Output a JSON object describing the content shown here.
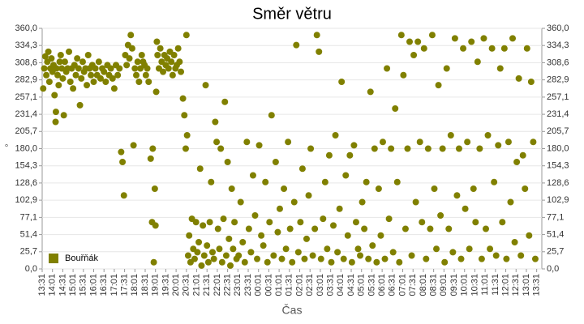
{
  "chart_data": {
    "type": "scatter",
    "title": "Směr větru",
    "x_label": "Čas",
    "y_label": "°",
    "xlim": [
      0,
      1455
    ],
    "ylim": [
      0,
      360
    ],
    "grid": true,
    "legend": "bottom-left",
    "xticks": [
      {
        "value": 0,
        "label": "13:31"
      },
      {
        "value": 30,
        "label": "14:01"
      },
      {
        "value": 60,
        "label": "14:31"
      },
      {
        "value": 90,
        "label": "15:01"
      },
      {
        "value": 120,
        "label": "15:31"
      },
      {
        "value": 150,
        "label": "16:01"
      },
      {
        "value": 180,
        "label": "16:31"
      },
      {
        "value": 210,
        "label": "17:01"
      },
      {
        "value": 240,
        "label": "17:31"
      },
      {
        "value": 270,
        "label": "18:01"
      },
      {
        "value": 300,
        "label": "18:31"
      },
      {
        "value": 330,
        "label": "19:01"
      },
      {
        "value": 360,
        "label": "19:31"
      },
      {
        "value": 390,
        "label": "20:01"
      },
      {
        "value": 420,
        "label": "20:31"
      },
      {
        "value": 450,
        "label": "21:01"
      },
      {
        "value": 480,
        "label": "21:31"
      },
      {
        "value": 510,
        "label": "22:01"
      },
      {
        "value": 540,
        "label": "22:31"
      },
      {
        "value": 570,
        "label": "23:01"
      },
      {
        "value": 600,
        "label": "23:31"
      },
      {
        "value": 630,
        "label": "00:01"
      },
      {
        "value": 660,
        "label": "00:31"
      },
      {
        "value": 690,
        "label": "01:01"
      },
      {
        "value": 720,
        "label": "01:31"
      },
      {
        "value": 750,
        "label": "02:01"
      },
      {
        "value": 780,
        "label": "02:31"
      },
      {
        "value": 810,
        "label": "03:01"
      },
      {
        "value": 840,
        "label": "03:31"
      },
      {
        "value": 870,
        "label": "04:01"
      },
      {
        "value": 900,
        "label": "04:31"
      },
      {
        "value": 930,
        "label": "05:01"
      },
      {
        "value": 960,
        "label": "05:31"
      },
      {
        "value": 990,
        "label": "06:01"
      },
      {
        "value": 1020,
        "label": "06:31"
      },
      {
        "value": 1050,
        "label": "07:01"
      },
      {
        "value": 1080,
        "label": "07:31"
      },
      {
        "value": 1110,
        "label": "08:01"
      },
      {
        "value": 1140,
        "label": "08:31"
      },
      {
        "value": 1170,
        "label": "09:01"
      },
      {
        "value": 1200,
        "label": "09:31"
      },
      {
        "value": 1230,
        "label": "10:01"
      },
      {
        "value": 1260,
        "label": "10:31"
      },
      {
        "value": 1290,
        "label": "11:01"
      },
      {
        "value": 1320,
        "label": "11:31"
      },
      {
        "value": 1350,
        "label": "12:01"
      },
      {
        "value": 1380,
        "label": "12:31"
      },
      {
        "value": 1410,
        "label": "13:01"
      },
      {
        "value": 1440,
        "label": "13:31"
      }
    ],
    "yticks": [
      {
        "value": 0,
        "label": "0,0"
      },
      {
        "value": 25.7,
        "label": "25,7"
      },
      {
        "value": 51.4,
        "label": "51,4"
      },
      {
        "value": 77.1,
        "label": "77,1"
      },
      {
        "value": 102.9,
        "label": "102,9"
      },
      {
        "value": 128.6,
        "label": "128,6"
      },
      {
        "value": 154.3,
        "label": "154,3"
      },
      {
        "value": 180,
        "label": "180,0"
      },
      {
        "value": 205.7,
        "label": "205,7"
      },
      {
        "value": 231.4,
        "label": "231,4"
      },
      {
        "value": 257.1,
        "label": "257,1"
      },
      {
        "value": 282.9,
        "label": "282,9"
      },
      {
        "value": 308.6,
        "label": "308,6"
      },
      {
        "value": 334.3,
        "label": "334,3"
      },
      {
        "value": 360,
        "label": "360,0"
      }
    ],
    "x": [
      3,
      6,
      9,
      12,
      15,
      18,
      21,
      24,
      27,
      30,
      33,
      36,
      39,
      40,
      42,
      45,
      48,
      51,
      54,
      57,
      60,
      63,
      66,
      70,
      74,
      78,
      82,
      86,
      90,
      94,
      98,
      102,
      106,
      110,
      114,
      118,
      122,
      126,
      130,
      134,
      138,
      142,
      146,
      150,
      155,
      160,
      165,
      170,
      175,
      180,
      185,
      190,
      195,
      200,
      205,
      210,
      215,
      220,
      225,
      230,
      234,
      238,
      242,
      246,
      250,
      254,
      258,
      262,
      266,
      270,
      274,
      278,
      282,
      286,
      290,
      294,
      298,
      302,
      306,
      310,
      316,
      320,
      322,
      325,
      328,
      330,
      332,
      334,
      336,
      340,
      344,
      348,
      352,
      356,
      360,
      364,
      368,
      372,
      376,
      380,
      384,
      388,
      392,
      396,
      400,
      404,
      410,
      414,
      418,
      420,
      422,
      425,
      428,
      432,
      436,
      440,
      444,
      448,
      452,
      456,
      460,
      464,
      468,
      472,
      476,
      480,
      484,
      488,
      492,
      496,
      500,
      504,
      508,
      512,
      516,
      520,
      524,
      528,
      532,
      536,
      540,
      544,
      548,
      552,
      556,
      560,
      566,
      572,
      578,
      584,
      590,
      596,
      602,
      608,
      614,
      620,
      626,
      632,
      638,
      644,
      650,
      656,
      662,
      668,
      674,
      680,
      686,
      692,
      698,
      704,
      710,
      716,
      722,
      728,
      734,
      740,
      746,
      752,
      758,
      764,
      770,
      776,
      782,
      788,
      794,
      800,
      806,
      812,
      818,
      824,
      830,
      836,
      842,
      848,
      854,
      860,
      866,
      872,
      878,
      884,
      890,
      896,
      902,
      908,
      914,
      920,
      926,
      932,
      938,
      944,
      950,
      956,
      962,
      968,
      974,
      980,
      986,
      992,
      998,
      1004,
      1010,
      1016,
      1022,
      1028,
      1034,
      1040,
      1046,
      1052,
      1058,
      1064,
      1070,
      1076,
      1082,
      1088,
      1094,
      1100,
      1106,
      1112,
      1118,
      1124,
      1130,
      1136,
      1142,
      1148,
      1154,
      1160,
      1166,
      1172,
      1178,
      1184,
      1190,
      1196,
      1202,
      1208,
      1214,
      1220,
      1226,
      1232,
      1238,
      1244,
      1250,
      1256,
      1262,
      1268,
      1274,
      1280,
      1286,
      1292,
      1298,
      1304,
      1310,
      1316,
      1322,
      1328,
      1334,
      1340,
      1346,
      1352,
      1358,
      1364,
      1370,
      1376,
      1382,
      1388,
      1394,
      1400,
      1406,
      1412,
      1418,
      1424,
      1430,
      1436
    ],
    "series": [
      {
        "name": "Bouřňák",
        "color": "#808000",
        "values": [
          270,
          300,
          318,
          290,
          310,
          325,
          280,
          300,
          315,
          295,
          305,
          260,
          220,
          235,
          300,
          290,
          275,
          310,
          320,
          300,
          285,
          230,
          310,
          295,
          300,
          325,
          280,
          300,
          270,
          305,
          290,
          315,
          300,
          245,
          285,
          310,
          295,
          300,
          275,
          320,
          300,
          290,
          305,
          280,
          300,
          290,
          310,
          285,
          300,
          295,
          280,
          305,
          290,
          300,
          285,
          270,
          305,
          290,
          300,
          175,
          160,
          110,
          320,
          305,
          335,
          315,
          350,
          330,
          185,
          300,
          290,
          310,
          280,
          300,
          320,
          310,
          305,
          290,
          300,
          280,
          165,
          70,
          180,
          10,
          120,
          65,
          265,
          340,
          320,
          300,
          330,
          310,
          295,
          320,
          305,
          315,
          300,
          325,
          310,
          290,
          320,
          300,
          305,
          330,
          310,
          295,
          255,
          230,
          180,
          350,
          200,
          20,
          50,
          10,
          75,
          30,
          15,
          70,
          25,
          40,
          150,
          5,
          65,
          20,
          275,
          35,
          10,
          70,
          130,
          25,
          15,
          220,
          190,
          60,
          30,
          180,
          10,
          75,
          250,
          20,
          160,
          45,
          5,
          120,
          30,
          70,
          15,
          20,
          100,
          40,
          10,
          190,
          60,
          25,
          140,
          80,
          15,
          185,
          50,
          35,
          130,
          10,
          70,
          230,
          20,
          160,
          55,
          90,
          15,
          120,
          30,
          190,
          60,
          10,
          100,
          335,
          25,
          70,
          150,
          15,
          45,
          110,
          180,
          20,
          60,
          350,
          325,
          15,
          75,
          130,
          30,
          170,
          10,
          65,
          200,
          25,
          90,
          280,
          15,
          140,
          50,
          170,
          10,
          185,
          70,
          30,
          20,
          100,
          60,
          130,
          15,
          265,
          35,
          180,
          10,
          120,
          50,
          190,
          15,
          300,
          75,
          180,
          25,
          240,
          130,
          10,
          350,
          290,
          60,
          180,
          340,
          20,
          320,
          100,
          340,
          190,
          70,
          330,
          15,
          180,
          60,
          350,
          120,
          30,
          275,
          80,
          180,
          10,
          300,
          60,
          200,
          25,
          345,
          110,
          180,
          15,
          330,
          90,
          190,
          30,
          340,
          120,
          70,
          310,
          180,
          15,
          345,
          60,
          200,
          30,
          330,
          130,
          20,
          185,
          300,
          70,
          330,
          15,
          190,
          100,
          345,
          40,
          160,
          285,
          20,
          170,
          120,
          330,
          50,
          280,
          190,
          15
        ]
      }
    ]
  }
}
